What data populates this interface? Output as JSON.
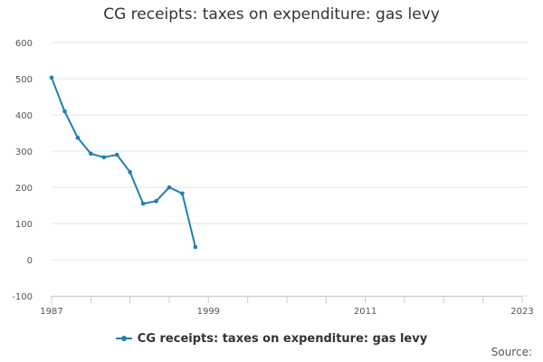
{
  "chart_data": {
    "type": "line",
    "title": "CG receipts: taxes on expenditure: gas levy",
    "xlabel": "",
    "ylabel": "",
    "xlim": [
      1987,
      2023
    ],
    "ylim": [
      -100,
      600
    ],
    "y_ticks": [
      600,
      500,
      400,
      300,
      200,
      100,
      0,
      -100
    ],
    "x_tick_labels": [
      "1987",
      "1999",
      "2011",
      "2023"
    ],
    "x_tick_values": [
      1987,
      1999,
      2011,
      2023
    ],
    "grid": true,
    "legend_position": "bottom",
    "series": [
      {
        "name": "CG receipts: taxes on expenditure: gas levy",
        "color": "#1f7fb4",
        "x": [
          1987,
          1988,
          1989,
          1990,
          1991,
          1992,
          1993,
          1994,
          1995,
          1996,
          1997,
          1998
        ],
        "values": [
          503,
          410,
          337,
          293,
          283,
          290,
          242,
          155,
          162,
          200,
          183,
          35
        ]
      }
    ]
  },
  "source_label": "Source:"
}
